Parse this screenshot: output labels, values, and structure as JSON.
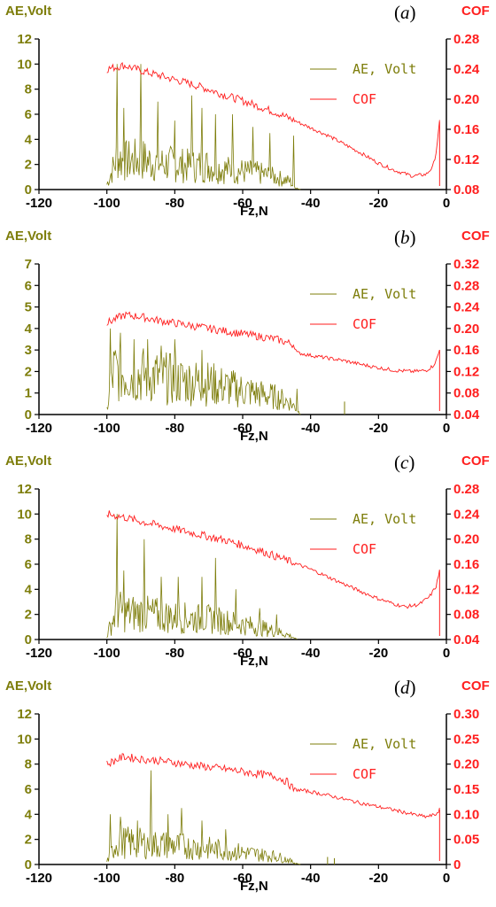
{
  "colors": {
    "ae": "#7d7d0a",
    "cof": "#ff1e1e",
    "axis": "#000000"
  },
  "common": {
    "xlabel": "Fz,N",
    "ylabel_left": "AE,Volt",
    "ylabel_right": "COF",
    "legend_ae": "AE, Volt",
    "legend_cof": "COF"
  },
  "chart_data": [
    {
      "type": "line",
      "panel_label": "a",
      "xlabel": "Fz,N",
      "ylabel_left": "AE,Volt",
      "ylabel_right": "COF",
      "xlim": [
        -120,
        0
      ],
      "x_ticks": [
        -120,
        -100,
        -80,
        -60,
        -40,
        -20,
        0
      ],
      "ylim_left": [
        0,
        12
      ],
      "y_ticks_left": [
        0,
        2,
        4,
        6,
        8,
        10,
        12
      ],
      "ylim_right": [
        0.08,
        0.28
      ],
      "y_ticks_right": [
        "0.08",
        "0.12",
        "0.16",
        "0.20",
        "0.24",
        "0.28"
      ],
      "legend": "top-right",
      "grid": false,
      "series": [
        {
          "name": "AE, Volt",
          "axis": "left",
          "x": [
            -100,
            -97,
            -95,
            -90,
            -85,
            -80,
            -75,
            -70,
            -65,
            -60,
            -55,
            -50,
            -46,
            -45,
            -43
          ],
          "values": [
            0.5,
            3.2,
            2.8,
            3.0,
            2.6,
            2.5,
            2.3,
            2.4,
            2.0,
            1.8,
            1.6,
            1.2,
            0.8,
            0.3,
            0.0
          ],
          "peaks": [
            [
              -97,
              10.0
            ],
            [
              -95,
              6.5
            ],
            [
              -90,
              10.0
            ],
            [
              -85,
              7.0
            ],
            [
              -80,
              5.5
            ],
            [
              -75,
              7.5
            ],
            [
              -72,
              6.5
            ],
            [
              -68,
              6.0
            ],
            [
              -63,
              6.0
            ],
            [
              -57,
              5.0
            ],
            [
              -52,
              4.5
            ],
            [
              -45,
              4.3
            ]
          ]
        },
        {
          "name": "COF",
          "axis": "right",
          "x": [
            -100,
            -95,
            -90,
            -85,
            -80,
            -75,
            -70,
            -65,
            -60,
            -55,
            -50,
            -45,
            -40,
            -35,
            -30,
            -25,
            -20,
            -15,
            -10,
            -6,
            -4,
            -3,
            -2
          ],
          "values": [
            0.24,
            0.245,
            0.238,
            0.232,
            0.226,
            0.22,
            0.213,
            0.205,
            0.198,
            0.19,
            0.182,
            0.172,
            0.162,
            0.152,
            0.14,
            0.128,
            0.115,
            0.105,
            0.098,
            0.1,
            0.11,
            0.13,
            0.17
          ]
        }
      ]
    },
    {
      "type": "line",
      "panel_label": "b",
      "xlabel": "Fz,N",
      "ylabel_left": "AE,Volt",
      "ylabel_right": "COF",
      "xlim": [
        -120,
        0
      ],
      "x_ticks": [
        -120,
        -100,
        -80,
        -60,
        -40,
        -20,
        0
      ],
      "ylim_left": [
        0,
        7
      ],
      "y_ticks_left": [
        0,
        1,
        2,
        3,
        4,
        5,
        6,
        7
      ],
      "ylim_right": [
        0.04,
        0.32
      ],
      "y_ticks_right": [
        "0.04",
        "0.08",
        "0.12",
        "0.16",
        "0.20",
        "0.24",
        "0.28",
        "0.32"
      ],
      "legend": "top-right",
      "grid": false,
      "series": [
        {
          "name": "AE, Volt",
          "axis": "left",
          "x": [
            -100,
            -98,
            -95,
            -90,
            -85,
            -80,
            -75,
            -70,
            -65,
            -60,
            -55,
            -50,
            -46,
            -44,
            -43
          ],
          "values": [
            0.3,
            2.5,
            2.4,
            2.3,
            2.2,
            2.0,
            1.9,
            1.8,
            1.6,
            1.4,
            1.2,
            1.0,
            0.7,
            0.3,
            0.0
          ],
          "peaks": [
            [
              -99,
              4.0
            ],
            [
              -96,
              3.8
            ],
            [
              -92,
              3.5
            ],
            [
              -88,
              3.5
            ],
            [
              -84,
              3.2
            ],
            [
              -80,
              3.5
            ],
            [
              -72,
              3.0
            ],
            [
              -44,
              1.2
            ],
            [
              -30,
              0.6
            ]
          ]
        },
        {
          "name": "COF",
          "axis": "right",
          "x": [
            -100,
            -95,
            -90,
            -85,
            -80,
            -75,
            -70,
            -65,
            -60,
            -55,
            -50,
            -45,
            -44,
            -40,
            -35,
            -30,
            -25,
            -20,
            -15,
            -10,
            -6,
            -4,
            -3,
            -2
          ],
          "values": [
            0.21,
            0.225,
            0.222,
            0.215,
            0.21,
            0.205,
            0.2,
            0.195,
            0.19,
            0.185,
            0.18,
            0.17,
            0.155,
            0.15,
            0.145,
            0.14,
            0.133,
            0.127,
            0.122,
            0.12,
            0.122,
            0.13,
            0.14,
            0.16
          ]
        }
      ]
    },
    {
      "type": "line",
      "panel_label": "c",
      "xlabel": "Fz,N",
      "ylabel_left": "AE,Volt",
      "ylabel_right": "COF",
      "xlim": [
        -120,
        0
      ],
      "x_ticks": [
        -120,
        -100,
        -80,
        -60,
        -40,
        -20,
        0
      ],
      "ylim_left": [
        0,
        12
      ],
      "y_ticks_left": [
        0,
        2,
        4,
        6,
        8,
        10,
        12
      ],
      "ylim_right": [
        0.04,
        0.28
      ],
      "y_ticks_right": [
        "0.04",
        "0.08",
        "0.12",
        "0.16",
        "0.20",
        "0.24",
        "0.28"
      ],
      "legend": "top-right",
      "grid": false,
      "series": [
        {
          "name": "AE, Volt",
          "axis": "left",
          "x": [
            -100,
            -97,
            -95,
            -90,
            -85,
            -80,
            -75,
            -70,
            -65,
            -60,
            -55,
            -50,
            -47,
            -45,
            -44
          ],
          "values": [
            0.4,
            3.0,
            2.6,
            2.6,
            2.4,
            2.2,
            2.1,
            2.0,
            1.8,
            1.5,
            1.2,
            0.8,
            0.5,
            0.2,
            0.0
          ],
          "peaks": [
            [
              -97,
              10.0
            ],
            [
              -95,
              5.5
            ],
            [
              -89,
              8.0
            ],
            [
              -84,
              5.0
            ],
            [
              -79,
              5.0
            ],
            [
              -72,
              5.0
            ],
            [
              -68,
              6.5
            ],
            [
              -62,
              4.0
            ],
            [
              -55,
              2.5
            ],
            [
              -50,
              2.0
            ]
          ]
        },
        {
          "name": "COF",
          "axis": "right",
          "x": [
            -100,
            -95,
            -90,
            -85,
            -80,
            -75,
            -70,
            -65,
            -60,
            -55,
            -50,
            -45,
            -40,
            -35,
            -30,
            -25,
            -20,
            -15,
            -12,
            -8,
            -5,
            -3,
            -2
          ],
          "values": [
            0.24,
            0.235,
            0.228,
            0.222,
            0.216,
            0.21,
            0.204,
            0.198,
            0.19,
            0.182,
            0.172,
            0.162,
            0.152,
            0.14,
            0.128,
            0.116,
            0.105,
            0.096,
            0.092,
            0.096,
            0.108,
            0.125,
            0.15
          ]
        }
      ]
    },
    {
      "type": "line",
      "panel_label": "d",
      "xlabel": "Fz,N",
      "ylabel_left": "AE,Volt",
      "ylabel_right": "COF",
      "xlim": [
        -120,
        0
      ],
      "x_ticks": [
        -120,
        -100,
        -80,
        -60,
        -40,
        -20,
        0
      ],
      "ylim_left": [
        0,
        12
      ],
      "y_ticks_left": [
        0,
        2,
        4,
        6,
        8,
        10,
        12
      ],
      "ylim_right": [
        0,
        0.3
      ],
      "y_ticks_right": [
        "0",
        "0.05",
        "0.10",
        "0.15",
        "0.20",
        "0.25",
        "0.30"
      ],
      "legend": "top-right",
      "grid": false,
      "series": [
        {
          "name": "AE, Volt",
          "axis": "left",
          "x": [
            -100,
            -97,
            -95,
            -90,
            -85,
            -80,
            -75,
            -70,
            -65,
            -60,
            -55,
            -50,
            -47,
            -45,
            -43
          ],
          "values": [
            0.3,
            2.3,
            2.2,
            2.1,
            2.0,
            1.9,
            1.7,
            1.6,
            1.4,
            1.2,
            1.0,
            0.8,
            0.5,
            0.2,
            0.0
          ],
          "peaks": [
            [
              -99,
              4.0
            ],
            [
              -96,
              3.8
            ],
            [
              -91,
              3.5
            ],
            [
              -87,
              7.5
            ],
            [
              -82,
              4.0
            ],
            [
              -78,
              4.5
            ],
            [
              -72,
              3.5
            ],
            [
              -65,
              2.8
            ],
            [
              -35,
              0.6
            ],
            [
              -33,
              0.5
            ]
          ]
        },
        {
          "name": "COF",
          "axis": "right",
          "x": [
            -100,
            -95,
            -90,
            -85,
            -80,
            -75,
            -70,
            -65,
            -60,
            -55,
            -50,
            -47,
            -45,
            -40,
            -35,
            -30,
            -25,
            -20,
            -15,
            -10,
            -6,
            -4,
            -3,
            -2
          ],
          "values": [
            0.2,
            0.215,
            0.21,
            0.207,
            0.203,
            0.198,
            0.194,
            0.19,
            0.185,
            0.18,
            0.175,
            0.165,
            0.15,
            0.145,
            0.138,
            0.13,
            0.122,
            0.115,
            0.108,
            0.1,
            0.095,
            0.098,
            0.1,
            0.11
          ]
        }
      ]
    }
  ]
}
